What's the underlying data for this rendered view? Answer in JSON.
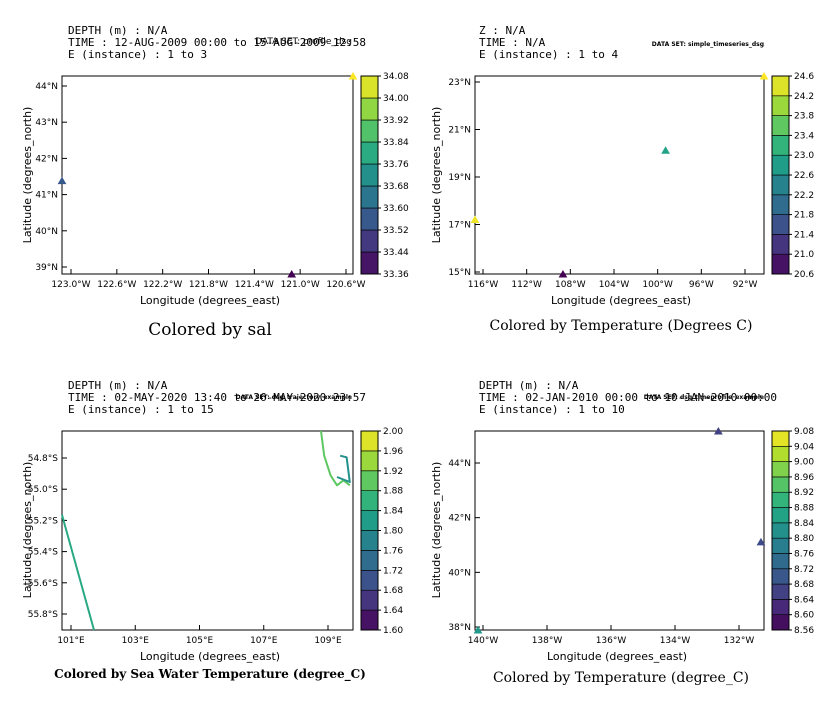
{
  "chart_data": [
    {
      "type": "scatter",
      "header": [
        "DEPTH (m) :  N/A",
        "TIME : 12-AUG-2009 00:00 to 15-AUG-2009 12:58",
        "E (instance) : 1 to 3"
      ],
      "dataset": "DATA SET: profile_dsg",
      "caption": "Colored by sal",
      "xlabel": "Longitude (degrees_east)",
      "ylabel": "Latitude (degrees_north)",
      "x_ticks": [
        "123.0°W",
        "122.6°W",
        "122.2°W",
        "121.8°W",
        "121.4°W",
        "121.0°W",
        "120.6°W"
      ],
      "y_ticks": [
        "39°N",
        "40°N",
        "41°N",
        "42°N",
        "43°N",
        "44°N"
      ],
      "xlim": [
        -123.2,
        -120.4
      ],
      "ylim": [
        38.8,
        44.1
      ],
      "points": [
        {
          "x": -123.2,
          "y": 41.3,
          "value": 33.56
        },
        {
          "x": -120.99,
          "y": 38.8,
          "value": 33.36
        },
        {
          "x": -120.4,
          "y": 44.1,
          "value": 34.08
        }
      ],
      "colorbar": {
        "min": 33.36,
        "max": 34.08,
        "labels": [
          "33.36",
          "33.44",
          "33.52",
          "33.60",
          "33.68",
          "33.76",
          "33.84",
          "33.92",
          "34.00",
          "34.08"
        ]
      }
    },
    {
      "type": "scatter",
      "header": [
        "Z :  N/A",
        "TIME :  N/A",
        "E (instance) : 1 to 4"
      ],
      "dataset": "DATA SET: simple_timeseries_dsg",
      "caption": "Colored by Temperature (Degrees C)",
      "xlabel": "Longitude (degrees_east)",
      "ylabel": "Latitude (degrees_north)",
      "x_ticks": [
        "116°W",
        "112°W",
        "108°W",
        "104°W",
        "100°W",
        "96°W",
        "92°W"
      ],
      "y_ticks": [
        "15°N",
        "17°N",
        "19°N",
        "21°N",
        "23°N"
      ],
      "xlim": [
        -116.3,
        -88.7
      ],
      "ylim": [
        15.0,
        23.0
      ],
      "points": [
        {
          "x": -116.3,
          "y": 17.2,
          "value": 24.5
        },
        {
          "x": -107.9,
          "y": 15.0,
          "value": 20.6
        },
        {
          "x": -98.1,
          "y": 20.0,
          "value": 22.9
        },
        {
          "x": -88.7,
          "y": 23.0,
          "value": 24.6
        }
      ],
      "colorbar": {
        "min": 20.6,
        "max": 24.6,
        "labels": [
          "20.6",
          "21.0",
          "21.4",
          "21.8",
          "22.2",
          "22.6",
          "23.0",
          "23.4",
          "23.8",
          "24.2",
          "24.6"
        ]
      }
    },
    {
      "type": "line",
      "header": [
        "DEPTH (m) :  N/A",
        "TIME : 02-MAY-2020 13:40 to 26-MAY-2020 23:57",
        "E (instance) : 1 to 15"
      ],
      "dataset": "DATA SET: dsg_trajectory_example",
      "caption": "Colored by Sea Water Temperature (degree_C)",
      "xlabel": "Longitude (degrees_east)",
      "ylabel": "Latitude (degrees_north)",
      "x_ticks": [
        "101°E",
        "103°E",
        "105°E",
        "107°E",
        "109°E"
      ],
      "y_ticks": [
        "54.8°S",
        "55.0°S",
        "55.2°S",
        "55.4°S",
        "55.6°S",
        "55.8°S"
      ],
      "xlim": [
        100.9,
        110.0
      ],
      "ylim": [
        -55.88,
        -54.67
      ],
      "tracks": [
        {
          "x": [
            100.9,
            101.9
          ],
          "y": [
            -55.18,
            -55.88
          ],
          "value": 1.84
        },
        {
          "x": [
            109.0,
            109.1,
            109.3,
            109.5,
            109.7,
            109.9
          ],
          "y": [
            -54.67,
            -54.82,
            -54.94,
            -55.0,
            -54.97,
            -55.0
          ],
          "value": 1.9
        },
        {
          "x": [
            109.5,
            109.9,
            109.8,
            109.6
          ],
          "y": [
            -54.95,
            -54.98,
            -54.83,
            -54.82
          ],
          "value": 1.8
        }
      ],
      "colorbar": {
        "min": 1.6,
        "max": 2.0,
        "labels": [
          "1.60",
          "1.64",
          "1.68",
          "1.72",
          "1.76",
          "1.80",
          "1.84",
          "1.88",
          "1.92",
          "1.96",
          "2.00"
        ]
      }
    },
    {
      "type": "scatter",
      "header": [
        "DEPTH (m) :  N/A",
        "TIME : 02-JAN-2010 00:00 to 10-JAN-2010 00:00",
        "E (instance) : 1 to 10"
      ],
      "dataset": "DATA SET: dsg_timeprofile_example",
      "caption": "Colored by Temperature (degree_C)",
      "xlabel": "Longitude (degrees_east)",
      "ylabel": "Latitude (degrees_north)",
      "x_ticks": [
        "140°W",
        "138°W",
        "136°W",
        "134°W",
        "132°W"
      ],
      "y_ticks": [
        "38°N",
        "40°N",
        "42°N",
        "44°N"
      ],
      "xlim": [
        -140.1,
        -130.6
      ],
      "ylim": [
        38.0,
        45.0
      ],
      "points": [
        {
          "x": -140.0,
          "y": 38.0,
          "value": 8.84
        },
        {
          "x": -132.1,
          "y": 45.0,
          "value": 8.66
        },
        {
          "x": -130.7,
          "y": 41.1,
          "value": 8.68
        }
      ],
      "colorbar": {
        "min": 8.56,
        "max": 9.08,
        "labels": [
          "8.56",
          "8.60",
          "8.64",
          "8.68",
          "8.72",
          "8.76",
          "8.80",
          "8.84",
          "8.88",
          "8.92",
          "8.96",
          "9.00",
          "9.04",
          "9.08"
        ]
      }
    }
  ]
}
